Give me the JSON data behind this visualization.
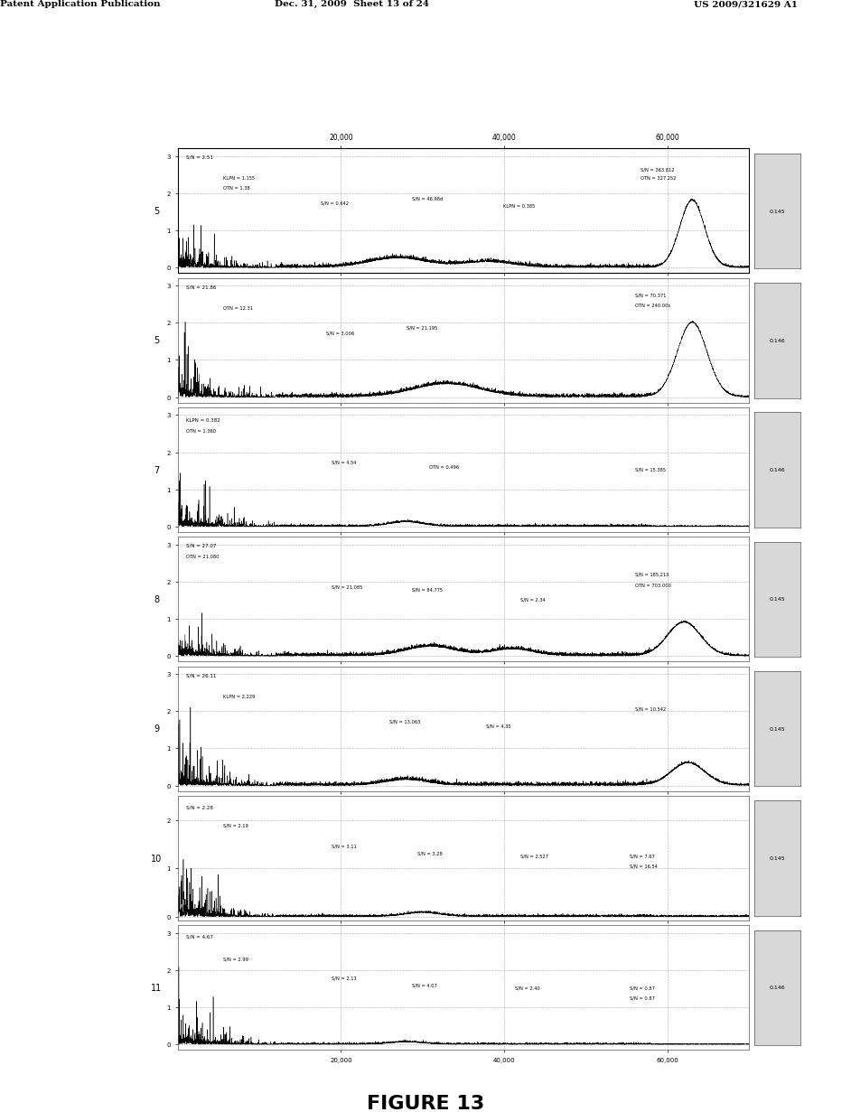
{
  "header_left": "Patent Application Publication",
  "header_center": "Dec. 31, 2009  Sheet 13 of 24",
  "header_right": "US 2009/321629 A1",
  "figure_label": "FIGURE 13",
  "figure_label_fontsize": 16,
  "page_bg": "#ffffff",
  "num_panels": 7,
  "panel_bg": "#ffffff",
  "x_ticks": [
    20000,
    40000,
    60000
  ],
  "x_tick_labels": [
    "20,000",
    "40,000",
    "60,000"
  ],
  "panel_labels": [
    "5",
    "5",
    "7",
    "8",
    "9",
    "10",
    "11"
  ],
  "right_labels": [
    "0.145",
    "0.146",
    "0.146",
    "0.145",
    "0.145",
    "0.145",
    "0.146"
  ],
  "line_color": "#000000",
  "grid_color": "#aaaaaa"
}
